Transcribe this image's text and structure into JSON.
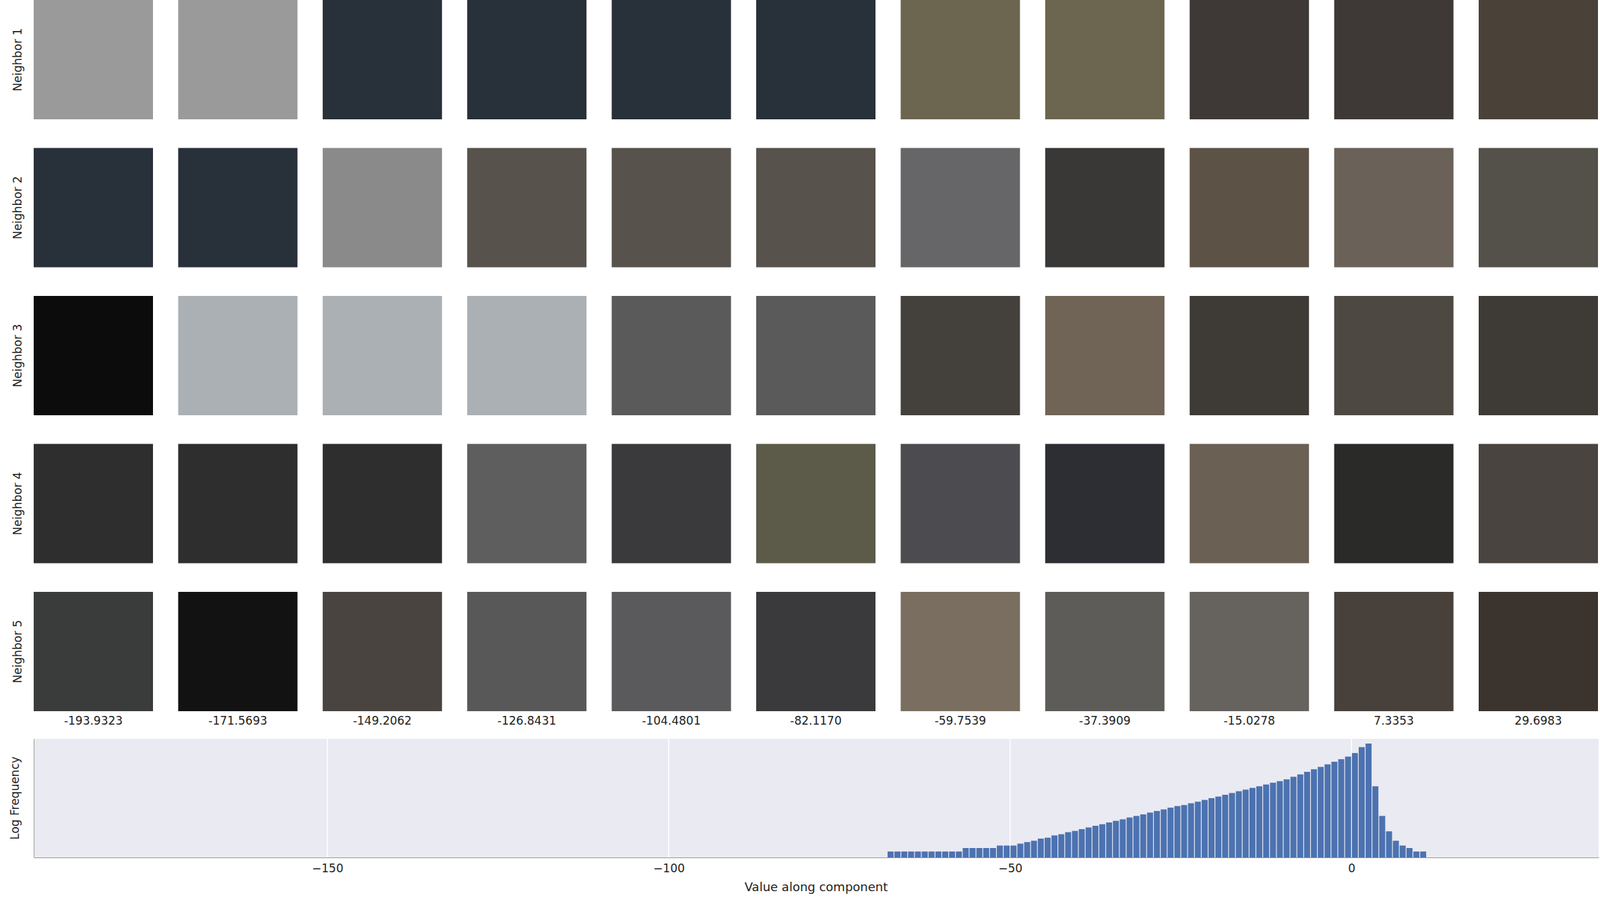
{
  "thumbnails": {
    "row_labels": [
      "Neighbor 1",
      "Neighbor 2",
      "Neighbor 3",
      "Neighbor 4",
      "Neighbor 5"
    ],
    "column_labels": [
      "-193.9323",
      "-171.5693",
      "-149.2062",
      "-126.8431",
      "-104.4801",
      "-82.1170",
      "-59.7539",
      "-37.3909",
      "-15.0278",
      "7.3353",
      "29.6983"
    ],
    "colors": [
      [
        "#9a9a9a",
        "#9a9a9a",
        "#28303a",
        "#28303a",
        "#28303a",
        "#28303a",
        "#6c6650",
        "#6c6650",
        "#3e3936",
        "#3e3936",
        "#4a4238"
      ],
      [
        "#28303a",
        "#28303a",
        "#8a8a8a",
        "#57524c",
        "#57524c",
        "#57524c",
        "#666668",
        "#3a3836",
        "#5c5346",
        "#6a6158",
        "#54504a"
      ],
      [
        "#0c0c0c",
        "#aab0b4",
        "#aab0b4",
        "#aab0b4",
        "#5a5a5a",
        "#5a5a5a",
        "#44403c",
        "#706456",
        "#3e3a36",
        "#4e4842",
        "#3e3a36"
      ],
      [
        "#2e2e2e",
        "#2e2e2e",
        "#2e2e2e",
        "#5e5e5e",
        "#3a3a3c",
        "#5c5a48",
        "#4c4c50",
        "#2c2e34",
        "#6a6054",
        "#2a2a28",
        "#4a4440"
      ],
      [
        "#3a3c3c",
        "#121212",
        "#4a4440",
        "#585858",
        "#5a5a5c",
        "#3a3a3c",
        "#7a6e60",
        "#5e5c58",
        "#66625e",
        "#48403a",
        "#3a332e"
      ]
    ]
  },
  "chart_data": {
    "type": "histogram",
    "x_label": "Value along component",
    "y_label": "Log Frequency",
    "color": "#4c72b0",
    "log": "y",
    "grid": true,
    "tick_labels": "x",
    "xlim": [
      -193,
      36.2
    ],
    "ylim": [
      1,
      1000000
    ],
    "xticks": [
      {
        "value": -150,
        "label": "−150"
      },
      {
        "value": -100,
        "label": "−100"
      },
      {
        "value": -50,
        "label": "−50"
      },
      0
    ],
    "bins": [
      -73,
      -72,
      -71,
      -70,
      -69,
      -68,
      -67,
      -66,
      -65,
      -64,
      -63,
      -62,
      -61,
      -60,
      -59,
      -58,
      -57,
      -56,
      -55,
      -54,
      -53,
      -52,
      -51,
      -50,
      -49,
      -48,
      -47,
      -46,
      -45,
      -44,
      -43,
      -42,
      -41,
      -40,
      -39,
      -38,
      -37,
      -36,
      -35,
      -34,
      -33,
      -32,
      -31,
      -30,
      -29,
      -28,
      -27,
      -26,
      -25,
      -24,
      -23,
      -22,
      -21,
      -20,
      -19,
      -18,
      -17,
      -16,
      -15,
      -14,
      -13,
      -12,
      -11,
      -10,
      -9,
      -8,
      -7,
      -6,
      -5,
      -4,
      -3,
      -2,
      -1,
      0,
      1,
      2,
      3,
      4,
      5,
      6,
      7,
      8,
      9,
      10,
      11,
      12
    ],
    "values": [
      1,
      1,
      1,
      1,
      1,
      2,
      2,
      2,
      2,
      2,
      2,
      2,
      2,
      2,
      2,
      2,
      3,
      3,
      3,
      3,
      3,
      4,
      4,
      4,
      5,
      6,
      7,
      9,
      10,
      13,
      15,
      19,
      22,
      27,
      33,
      40,
      48,
      59,
      71,
      85,
      105,
      126,
      151,
      186,
      224,
      269,
      331,
      398,
      447,
      550,
      661,
      813,
      1000,
      1202,
      1479,
      1820,
      2239,
      2692,
      3311,
      3981,
      4898,
      6026,
      7244,
      8913,
      12023,
      15849,
      21380,
      28840,
      38019,
      51286,
      69183,
      93325,
      125893,
      190546,
      380189,
      575440,
      3981,
      126,
      21,
      7,
      4,
      3,
      2,
      2,
      1
    ]
  }
}
